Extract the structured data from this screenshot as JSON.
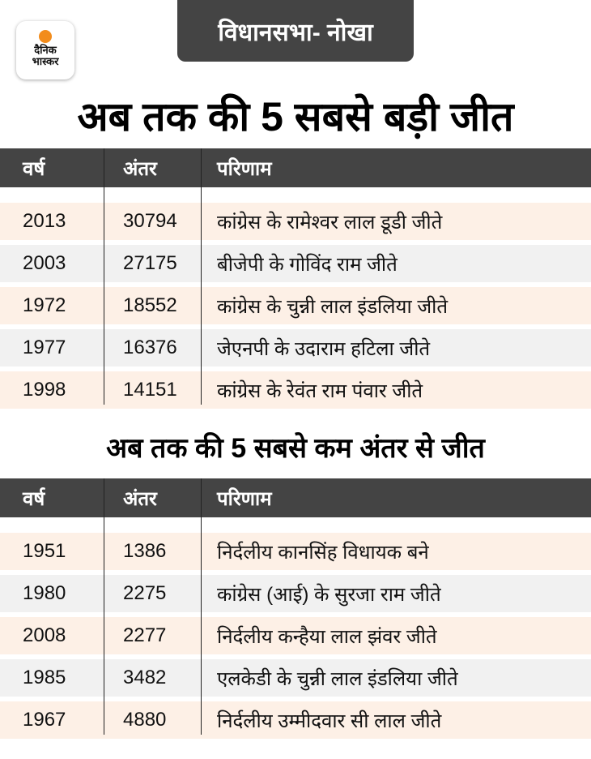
{
  "logo": {
    "line1": "दैनिक",
    "line2": "भास्कर"
  },
  "badge": "विधानसभा- नोखा",
  "sections": [
    {
      "title": "अब तक की 5 सबसे बड़ी जीत",
      "headers": [
        "वर्ष",
        "अंतर",
        "परिणाम"
      ],
      "rows": [
        [
          "2013",
          "30794",
          "कांग्रेस के रामेश्वर लाल डूडी जीते"
        ],
        [
          "2003",
          "27175",
          "बीजेपी के गोविंद राम जीते"
        ],
        [
          "1972",
          "18552",
          "कांग्रेस के चुन्नी लाल इंडलिया जीते"
        ],
        [
          "1977",
          "16376",
          "जेएनपी के उदाराम हटिला जीते"
        ],
        [
          "1998",
          "14151",
          "कांग्रेस के रेवंत राम पंवार जीते"
        ]
      ]
    },
    {
      "title": "अब तक की 5 सबसे कम अंतर से जीत",
      "headers": [
        "वर्ष",
        "अंतर",
        "परिणाम"
      ],
      "rows": [
        [
          "1951",
          "1386",
          "निर्दलीय कानसिंह विधायक बने"
        ],
        [
          "1980",
          "2275",
          "कांग्रेस (आई) के सुरजा राम जीते"
        ],
        [
          "2008",
          "2277",
          "निर्दलीय कन्हैया लाल झंवर जीते"
        ],
        [
          "1985",
          "3482",
          "एलकेडी के चुन्नी लाल इंडलिया जीते"
        ],
        [
          "1967",
          "4880",
          "निर्दलीय उम्मीदवार सी लाल जीते"
        ]
      ]
    }
  ]
}
